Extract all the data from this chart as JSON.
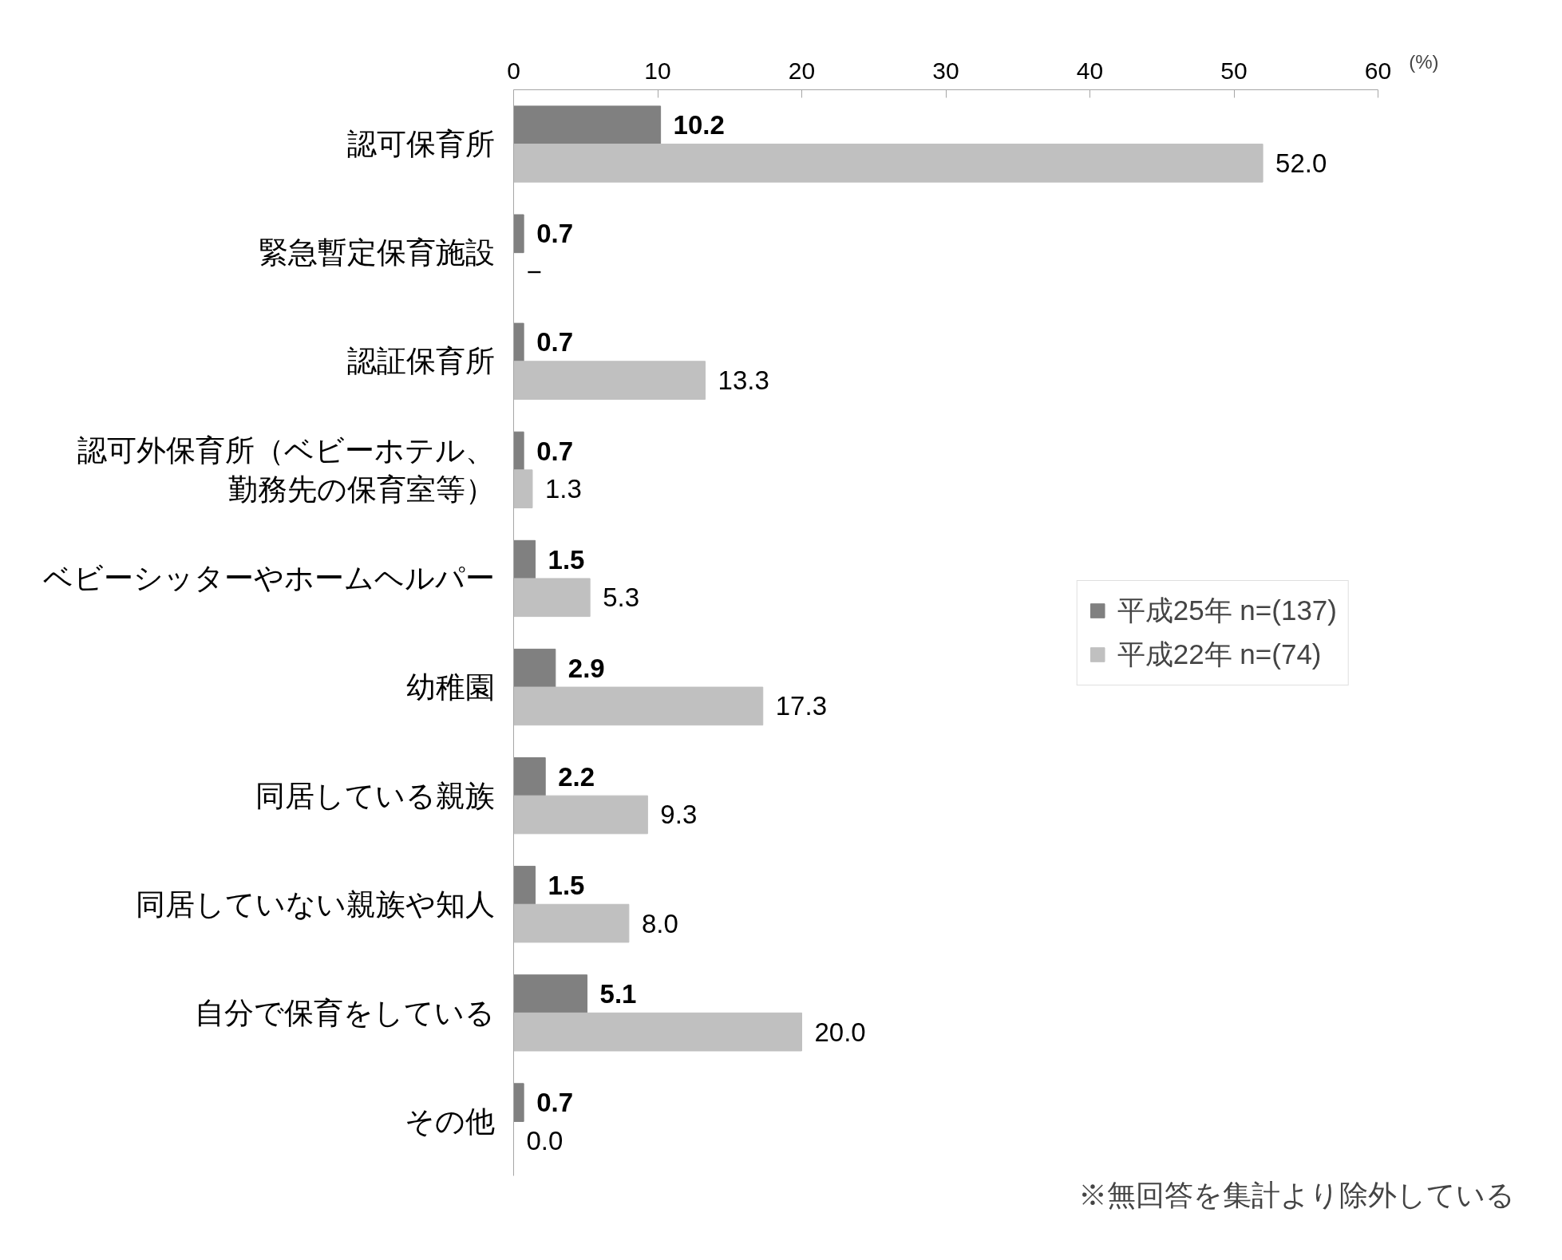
{
  "chart_data": {
    "type": "bar",
    "orientation": "horizontal",
    "xlabel": "(%)",
    "categories": [
      "認可保育所",
      "緊急暫定保育施設",
      "認証保育所",
      "認可外保育所（ベビーホテル、勤務先の保育室等）",
      "ベビーシッターやホームヘルパー",
      "幼稚園",
      "同居している親族",
      "同居していない親族や知人",
      "自分で保育をしている",
      "その他"
    ],
    "xlim": [
      0,
      60
    ],
    "xticks": [
      0,
      10,
      20,
      30,
      40,
      50,
      60
    ],
    "series": [
      {
        "name": "平成25年 n=(137)",
        "color": "#808080",
        "values": [
          10.2,
          0.7,
          0.7,
          0.7,
          1.5,
          2.9,
          2.2,
          1.5,
          5.1,
          0.7
        ],
        "value_labels": [
          "10.2",
          "0.7",
          "0.7",
          "0.7",
          "1.5",
          "2.9",
          "2.2",
          "1.5",
          "5.1",
          "0.7"
        ]
      },
      {
        "name": "平成22年 n=(74)",
        "color": "#c0c0c0",
        "values": [
          52.0,
          null,
          13.3,
          1.3,
          5.3,
          17.3,
          9.3,
          8.0,
          20.0,
          0.0
        ],
        "value_labels": [
          "52.0",
          "−",
          "13.3",
          "1.3",
          "5.3",
          "17.3",
          "9.3",
          "8.0",
          "20.0",
          "0.0"
        ]
      }
    ],
    "legend": "right",
    "grid": false,
    "annotations": [
      "※無回答を集計より除外している"
    ]
  }
}
